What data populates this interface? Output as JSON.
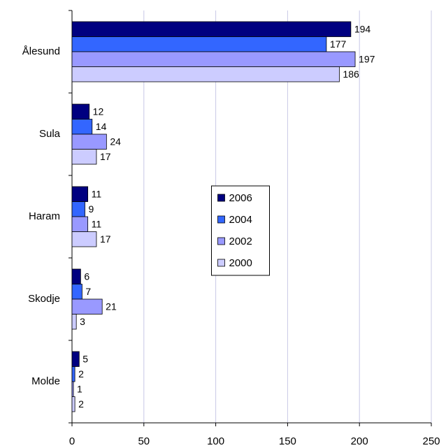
{
  "chart_data": {
    "type": "bar",
    "orientation": "horizontal",
    "categories": [
      "Ålesund",
      "Sula",
      "Haram",
      "Skodje",
      "Molde"
    ],
    "series": [
      {
        "name": "2006",
        "color": "#000080",
        "values": [
          194,
          12,
          11,
          6,
          5
        ]
      },
      {
        "name": "2004",
        "color": "#3366ff",
        "values": [
          177,
          14,
          9,
          7,
          2
        ]
      },
      {
        "name": "2002",
        "color": "#9999ff",
        "values": [
          197,
          24,
          11,
          21,
          1
        ]
      },
      {
        "name": "2000",
        "color": "#ccccff",
        "values": [
          186,
          17,
          17,
          3,
          2
        ]
      }
    ],
    "xlim": [
      0,
      250
    ],
    "xticks": [
      0,
      50,
      100,
      150,
      200,
      250
    ],
    "grid": true,
    "legend_position": "center"
  }
}
